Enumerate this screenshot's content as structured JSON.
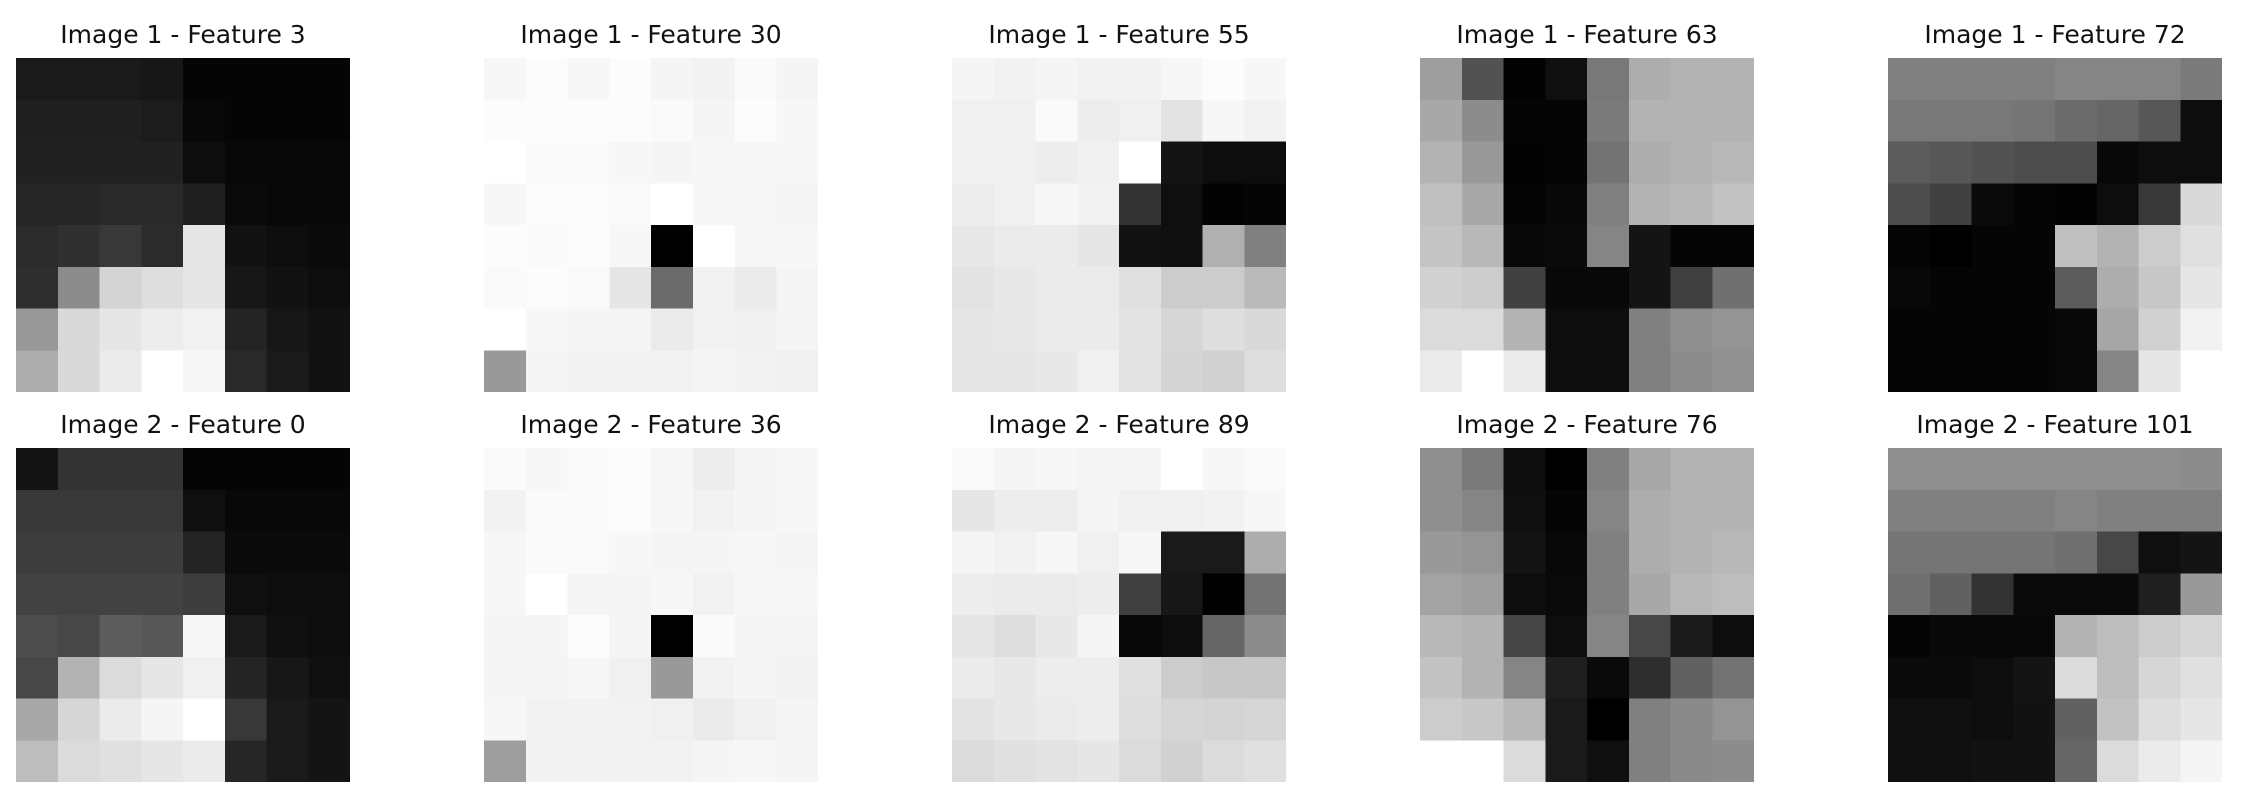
{
  "chart_data": [
    {
      "type": "heatmap",
      "title": "Image 1 - Feature 3",
      "colormap": "gray",
      "grid": false,
      "axes_visible": false,
      "values": [
        [
          0.1,
          0.1,
          0.1,
          0.09,
          0.02,
          0.02,
          0.02,
          0.02
        ],
        [
          0.12,
          0.12,
          0.12,
          0.11,
          0.03,
          0.02,
          0.02,
          0.02
        ],
        [
          0.13,
          0.13,
          0.13,
          0.13,
          0.05,
          0.03,
          0.03,
          0.03
        ],
        [
          0.15,
          0.15,
          0.16,
          0.16,
          0.12,
          0.04,
          0.03,
          0.03
        ],
        [
          0.17,
          0.19,
          0.22,
          0.17,
          0.9,
          0.07,
          0.05,
          0.04
        ],
        [
          0.18,
          0.55,
          0.83,
          0.87,
          0.9,
          0.09,
          0.07,
          0.05
        ],
        [
          0.6,
          0.85,
          0.9,
          0.93,
          0.95,
          0.14,
          0.09,
          0.07
        ],
        [
          0.68,
          0.85,
          0.92,
          1.0,
          0.97,
          0.16,
          0.1,
          0.07
        ]
      ]
    },
    {
      "type": "heatmap",
      "title": "Image 1 - Feature 30",
      "colormap": "gray",
      "grid": false,
      "axes_visible": false,
      "values": [
        [
          0.97,
          0.99,
          0.97,
          0.99,
          0.96,
          0.95,
          0.98,
          0.96
        ],
        [
          0.99,
          0.99,
          0.99,
          0.99,
          0.98,
          0.96,
          0.99,
          0.97
        ],
        [
          1.0,
          0.98,
          0.98,
          0.97,
          0.96,
          0.97,
          0.97,
          0.97
        ],
        [
          0.97,
          0.99,
          0.99,
          0.98,
          1.0,
          0.97,
          0.97,
          0.96
        ],
        [
          0.99,
          0.98,
          0.99,
          0.97,
          0.0,
          1.0,
          0.97,
          0.97
        ],
        [
          0.98,
          0.99,
          0.98,
          0.9,
          0.42,
          0.95,
          0.92,
          0.96
        ],
        [
          1.0,
          0.97,
          0.96,
          0.96,
          0.92,
          0.95,
          0.94,
          0.96
        ],
        [
          0.6,
          0.96,
          0.95,
          0.95,
          0.95,
          0.96,
          0.95,
          0.94
        ]
      ]
    },
    {
      "type": "heatmap",
      "title": "Image 1 - Feature 55",
      "colormap": "gray",
      "grid": false,
      "axes_visible": false,
      "values": [
        [
          0.96,
          0.95,
          0.96,
          0.95,
          0.95,
          0.97,
          0.99,
          0.97
        ],
        [
          0.94,
          0.94,
          0.98,
          0.93,
          0.94,
          0.89,
          0.97,
          0.95
        ],
        [
          0.94,
          0.94,
          0.93,
          0.94,
          1.0,
          0.08,
          0.05,
          0.05
        ],
        [
          0.93,
          0.94,
          0.97,
          0.95,
          0.2,
          0.06,
          0.01,
          0.02
        ],
        [
          0.91,
          0.92,
          0.92,
          0.9,
          0.07,
          0.06,
          0.69,
          0.5
        ],
        [
          0.89,
          0.91,
          0.92,
          0.92,
          0.88,
          0.8,
          0.8,
          0.73
        ],
        [
          0.9,
          0.91,
          0.92,
          0.92,
          0.89,
          0.84,
          0.87,
          0.85
        ],
        [
          0.9,
          0.9,
          0.91,
          0.94,
          0.89,
          0.83,
          0.82,
          0.87
        ]
      ]
    },
    {
      "type": "heatmap",
      "title": "Image 1 - Feature 63",
      "colormap": "gray",
      "grid": false,
      "axes_visible": false,
      "values": [
        [
          0.62,
          0.32,
          0.01,
          0.06,
          0.47,
          0.68,
          0.7,
          0.7
        ],
        [
          0.66,
          0.55,
          0.02,
          0.02,
          0.48,
          0.7,
          0.7,
          0.7
        ],
        [
          0.7,
          0.6,
          0.01,
          0.02,
          0.45,
          0.68,
          0.7,
          0.72
        ],
        [
          0.75,
          0.66,
          0.02,
          0.03,
          0.5,
          0.7,
          0.72,
          0.76
        ],
        [
          0.77,
          0.72,
          0.03,
          0.04,
          0.52,
          0.08,
          0.02,
          0.02
        ],
        [
          0.82,
          0.8,
          0.25,
          0.03,
          0.03,
          0.08,
          0.25,
          0.44
        ],
        [
          0.86,
          0.86,
          0.7,
          0.05,
          0.05,
          0.5,
          0.56,
          0.58
        ],
        [
          0.92,
          1.0,
          0.92,
          0.05,
          0.05,
          0.5,
          0.55,
          0.57
        ]
      ]
    },
    {
      "type": "heatmap",
      "title": "Image 1 - Feature 72",
      "colormap": "gray",
      "grid": false,
      "axes_visible": false,
      "values": [
        [
          0.5,
          0.5,
          0.5,
          0.5,
          0.52,
          0.52,
          0.52,
          0.48
        ],
        [
          0.47,
          0.47,
          0.47,
          0.46,
          0.42,
          0.4,
          0.34,
          0.05
        ],
        [
          0.36,
          0.34,
          0.32,
          0.3,
          0.3,
          0.03,
          0.05,
          0.05
        ],
        [
          0.3,
          0.25,
          0.04,
          0.02,
          0.01,
          0.05,
          0.22,
          0.85
        ],
        [
          0.02,
          0.0,
          0.02,
          0.02,
          0.75,
          0.7,
          0.8,
          0.88
        ],
        [
          0.03,
          0.02,
          0.02,
          0.02,
          0.36,
          0.68,
          0.78,
          0.9
        ],
        [
          0.02,
          0.02,
          0.02,
          0.02,
          0.03,
          0.65,
          0.82,
          0.95
        ],
        [
          0.02,
          0.02,
          0.02,
          0.02,
          0.03,
          0.52,
          0.9,
          1.0
        ]
      ]
    },
    {
      "type": "heatmap",
      "title": "Image 2 - Feature 0",
      "colormap": "gray",
      "grid": false,
      "axes_visible": false,
      "values": [
        [
          0.08,
          0.2,
          0.2,
          0.2,
          0.02,
          0.02,
          0.02,
          0.02
        ],
        [
          0.22,
          0.22,
          0.22,
          0.22,
          0.06,
          0.03,
          0.03,
          0.03
        ],
        [
          0.24,
          0.24,
          0.24,
          0.24,
          0.14,
          0.04,
          0.04,
          0.04
        ],
        [
          0.26,
          0.26,
          0.26,
          0.26,
          0.24,
          0.06,
          0.05,
          0.05
        ],
        [
          0.3,
          0.28,
          0.36,
          0.34,
          0.97,
          0.1,
          0.06,
          0.05
        ],
        [
          0.28,
          0.7,
          0.86,
          0.9,
          0.94,
          0.14,
          0.09,
          0.06
        ],
        [
          0.66,
          0.84,
          0.92,
          0.96,
          1.0,
          0.22,
          0.1,
          0.08
        ],
        [
          0.74,
          0.86,
          0.88,
          0.9,
          0.92,
          0.15,
          0.1,
          0.08
        ]
      ]
    },
    {
      "type": "heatmap",
      "title": "Image 2 - Feature 36",
      "colormap": "gray",
      "grid": false,
      "axes_visible": false,
      "values": [
        [
          0.98,
          0.97,
          0.98,
          0.99,
          0.97,
          0.93,
          0.96,
          0.97
        ],
        [
          0.95,
          0.98,
          0.98,
          0.99,
          0.97,
          0.95,
          0.96,
          0.97
        ],
        [
          0.97,
          0.98,
          0.98,
          0.97,
          0.96,
          0.96,
          0.97,
          0.96
        ],
        [
          0.97,
          1.0,
          0.96,
          0.96,
          0.97,
          0.95,
          0.97,
          0.97
        ],
        [
          0.96,
          0.96,
          0.99,
          0.96,
          0.0,
          0.98,
          0.96,
          0.96
        ],
        [
          0.96,
          0.96,
          0.97,
          0.94,
          0.6,
          0.95,
          0.96,
          0.95
        ],
        [
          0.97,
          0.95,
          0.95,
          0.95,
          0.94,
          0.92,
          0.94,
          0.96
        ],
        [
          0.62,
          0.95,
          0.95,
          0.95,
          0.95,
          0.96,
          0.97,
          0.96
        ]
      ]
    },
    {
      "type": "heatmap",
      "title": "Image 2 - Feature 89",
      "colormap": "gray",
      "grid": false,
      "axes_visible": false,
      "values": [
        [
          0.98,
          0.96,
          0.97,
          0.96,
          0.96,
          1.0,
          0.97,
          0.98
        ],
        [
          0.9,
          0.93,
          0.93,
          0.96,
          0.94,
          0.94,
          0.95,
          0.97
        ],
        [
          0.96,
          0.95,
          0.97,
          0.94,
          0.97,
          0.1,
          0.1,
          0.68
        ],
        [
          0.93,
          0.92,
          0.92,
          0.93,
          0.25,
          0.09,
          0.0,
          0.45
        ],
        [
          0.9,
          0.87,
          0.91,
          0.96,
          0.03,
          0.05,
          0.4,
          0.55
        ],
        [
          0.92,
          0.91,
          0.93,
          0.93,
          0.88,
          0.8,
          0.78,
          0.78
        ],
        [
          0.89,
          0.91,
          0.92,
          0.93,
          0.87,
          0.84,
          0.83,
          0.84
        ],
        [
          0.86,
          0.88,
          0.89,
          0.9,
          0.86,
          0.82,
          0.86,
          0.88
        ]
      ]
    },
    {
      "type": "heatmap",
      "title": "Image 2 - Feature 76",
      "colormap": "gray",
      "grid": false,
      "axes_visible": false,
      "values": [
        [
          0.56,
          0.48,
          0.05,
          0.0,
          0.5,
          0.66,
          0.7,
          0.7
        ],
        [
          0.56,
          0.52,
          0.06,
          0.02,
          0.52,
          0.68,
          0.7,
          0.7
        ],
        [
          0.6,
          0.58,
          0.08,
          0.03,
          0.5,
          0.68,
          0.7,
          0.72
        ],
        [
          0.64,
          0.62,
          0.05,
          0.04,
          0.5,
          0.66,
          0.72,
          0.74
        ],
        [
          0.72,
          0.7,
          0.27,
          0.05,
          0.52,
          0.28,
          0.1,
          0.05
        ],
        [
          0.76,
          0.7,
          0.52,
          0.12,
          0.04,
          0.18,
          0.38,
          0.45
        ],
        [
          0.8,
          0.78,
          0.72,
          0.1,
          0.0,
          0.5,
          0.54,
          0.58
        ],
        [
          1.0,
          1.0,
          0.86,
          0.1,
          0.06,
          0.5,
          0.54,
          0.55
        ]
      ]
    },
    {
      "type": "heatmap",
      "title": "Image 2 - Feature 101",
      "colormap": "gray",
      "grid": false,
      "axes_visible": false,
      "values": [
        [
          0.56,
          0.56,
          0.56,
          0.56,
          0.56,
          0.56,
          0.56,
          0.55
        ],
        [
          0.5,
          0.5,
          0.5,
          0.5,
          0.52,
          0.5,
          0.5,
          0.5
        ],
        [
          0.46,
          0.46,
          0.46,
          0.46,
          0.44,
          0.28,
          0.06,
          0.08
        ],
        [
          0.44,
          0.38,
          0.2,
          0.04,
          0.04,
          0.04,
          0.12,
          0.6
        ],
        [
          0.02,
          0.03,
          0.03,
          0.03,
          0.7,
          0.74,
          0.8,
          0.84
        ],
        [
          0.04,
          0.04,
          0.05,
          0.08,
          0.86,
          0.74,
          0.84,
          0.88
        ],
        [
          0.06,
          0.06,
          0.05,
          0.07,
          0.38,
          0.76,
          0.87,
          0.9
        ],
        [
          0.06,
          0.06,
          0.07,
          0.07,
          0.4,
          0.86,
          0.92,
          0.96
        ]
      ]
    }
  ]
}
